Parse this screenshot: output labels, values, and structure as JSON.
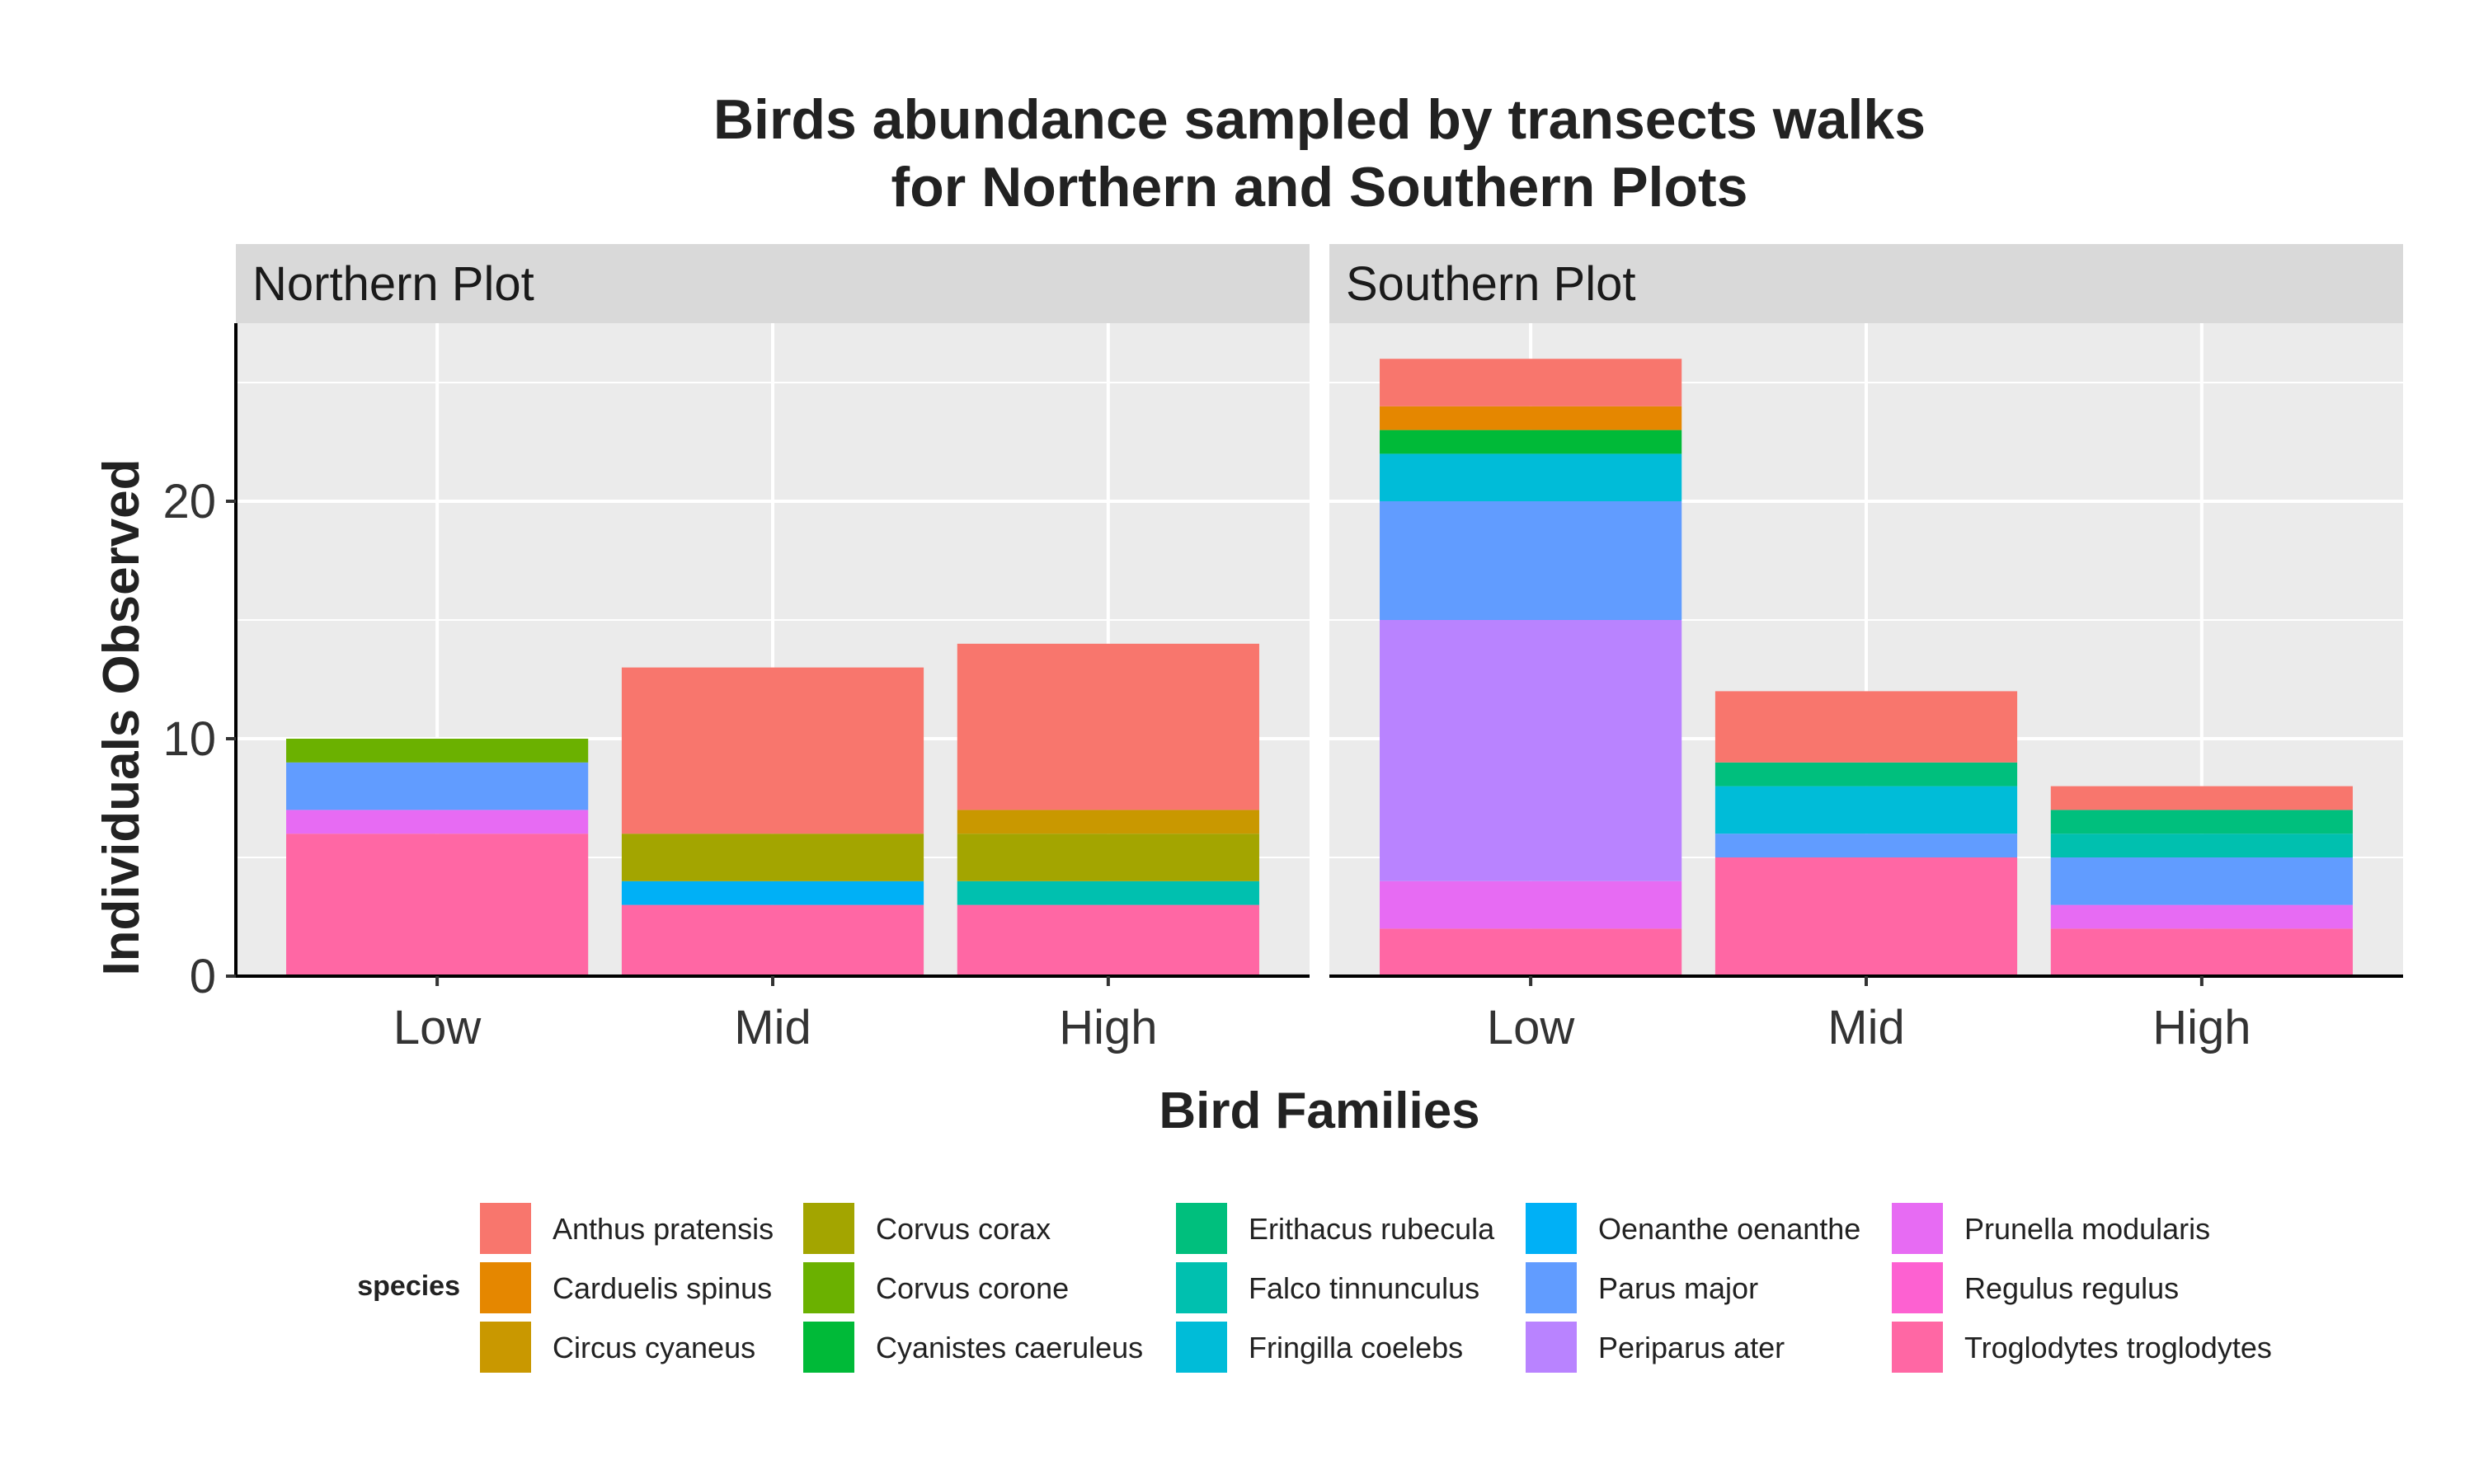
{
  "chart_data": {
    "type": "bar",
    "stacked": true,
    "title_lines": [
      "Birds abundance sampled by transects walks",
      "for Northern and Southern Plots"
    ],
    "xlabel": "Bird Families",
    "ylabel": "Individuals Observed",
    "ylim": [
      0,
      27.5
    ],
    "yticks": [
      0,
      10,
      20
    ],
    "grid": true,
    "categories": [
      "Low",
      "Mid",
      "High"
    ],
    "legend": {
      "title": "species",
      "placement": "bottom",
      "items": [
        {
          "name": "Anthus pratensis",
          "color": "#F8766D"
        },
        {
          "name": "Carduelis spinus",
          "color": "#E58700"
        },
        {
          "name": "Circus cyaneus",
          "color": "#C99800"
        },
        {
          "name": "Corvus corax",
          "color": "#A3A500"
        },
        {
          "name": "Corvus corone",
          "color": "#6BB100"
        },
        {
          "name": "Cyanistes caeruleus",
          "color": "#00BA38"
        },
        {
          "name": "Erithacus rubecula",
          "color": "#00BF7D"
        },
        {
          "name": "Falco tinnunculus",
          "color": "#00C0AF"
        },
        {
          "name": "Fringilla coelebs",
          "color": "#00BCD8"
        },
        {
          "name": "Oenanthe oenanthe",
          "color": "#00B0F6"
        },
        {
          "name": "Parus major",
          "color": "#619CFF"
        },
        {
          "name": "Periparus ater",
          "color": "#B983FF"
        },
        {
          "name": "Prunella modularis",
          "color": "#E76BF3"
        },
        {
          "name": "Regulus regulus",
          "color": "#FD61D1"
        },
        {
          "name": "Troglodytes troglodytes",
          "color": "#FF67A4"
        }
      ]
    },
    "panels": [
      {
        "name": "Northern Plot",
        "bars": [
          {
            "category": "Low",
            "segments": [
              {
                "species": "Troglodytes troglodytes",
                "value": 6
              },
              {
                "species": "Prunella modularis",
                "value": 1
              },
              {
                "species": "Parus major",
                "value": 2
              },
              {
                "species": "Corvus corone",
                "value": 1
              }
            ]
          },
          {
            "category": "Mid",
            "segments": [
              {
                "species": "Troglodytes troglodytes",
                "value": 3
              },
              {
                "species": "Oenanthe oenanthe",
                "value": 1
              },
              {
                "species": "Corvus corax",
                "value": 2
              },
              {
                "species": "Anthus pratensis",
                "value": 7
              }
            ]
          },
          {
            "category": "High",
            "segments": [
              {
                "species": "Troglodytes troglodytes",
                "value": 3
              },
              {
                "species": "Falco tinnunculus",
                "value": 1
              },
              {
                "species": "Corvus corax",
                "value": 2
              },
              {
                "species": "Circus cyaneus",
                "value": 1
              },
              {
                "species": "Anthus pratensis",
                "value": 7
              }
            ]
          }
        ]
      },
      {
        "name": "Southern Plot",
        "bars": [
          {
            "category": "Low",
            "segments": [
              {
                "species": "Troglodytes troglodytes",
                "value": 2
              },
              {
                "species": "Prunella modularis",
                "value": 2
              },
              {
                "species": "Periparus ater",
                "value": 11
              },
              {
                "species": "Parus major",
                "value": 5
              },
              {
                "species": "Fringilla coelebs",
                "value": 2
              },
              {
                "species": "Cyanistes caeruleus",
                "value": 1
              },
              {
                "species": "Carduelis spinus",
                "value": 1
              },
              {
                "species": "Anthus pratensis",
                "value": 2
              }
            ]
          },
          {
            "category": "Mid",
            "segments": [
              {
                "species": "Troglodytes troglodytes",
                "value": 5
              },
              {
                "species": "Parus major",
                "value": 1
              },
              {
                "species": "Fringilla coelebs",
                "value": 2
              },
              {
                "species": "Erithacus rubecula",
                "value": 1
              },
              {
                "species": "Anthus pratensis",
                "value": 3
              }
            ]
          },
          {
            "category": "High",
            "segments": [
              {
                "species": "Troglodytes troglodytes",
                "value": 2
              },
              {
                "species": "Prunella modularis",
                "value": 1
              },
              {
                "species": "Parus major",
                "value": 2
              },
              {
                "species": "Falco tinnunculus",
                "value": 1
              },
              {
                "species": "Erithacus rubecula",
                "value": 1
              },
              {
                "species": "Anthus pratensis",
                "value": 1
              }
            ]
          }
        ]
      }
    ]
  }
}
